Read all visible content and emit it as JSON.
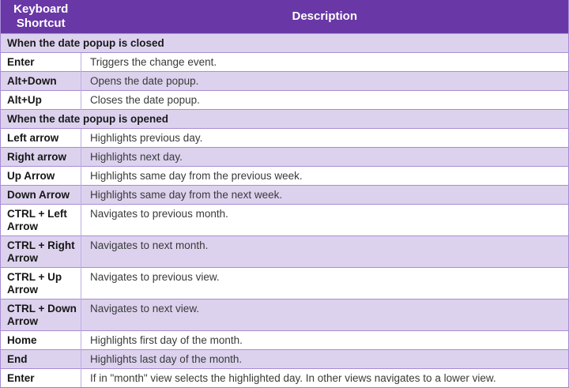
{
  "table": {
    "header": {
      "col1": "Keyboard Shortcut",
      "col2": "Description"
    },
    "rows": [
      {
        "type": "section",
        "label": "When the date popup is closed"
      },
      {
        "type": "item",
        "shortcut": "Enter",
        "description": "Triggers the change event."
      },
      {
        "type": "item",
        "shortcut": "Alt+Down",
        "description": "Opens the date popup."
      },
      {
        "type": "item",
        "shortcut": "Alt+Up",
        "description": "Closes the date popup."
      },
      {
        "type": "section",
        "label": "When the date popup is opened"
      },
      {
        "type": "item",
        "shortcut": "Left arrow",
        "description": "Highlights previous day."
      },
      {
        "type": "item",
        "shortcut": "Right arrow",
        "description": "Highlights next day."
      },
      {
        "type": "item",
        "shortcut": "Up Arrow",
        "description": "Highlights same day from the previous week."
      },
      {
        "type": "item",
        "shortcut": "Down Arrow",
        "description": "Highlights same day from the next week."
      },
      {
        "type": "item",
        "shortcut": "CTRL + Left Arrow",
        "description": "Navigates to previous month."
      },
      {
        "type": "item",
        "shortcut": "CTRL + Right Arrow",
        "description": "Navigates to next month."
      },
      {
        "type": "item",
        "shortcut": "CTRL + Up Arrow",
        "description": "Navigates to previous view."
      },
      {
        "type": "item",
        "shortcut": "CTRL + Down Arrow",
        "description": "Navigates to next view."
      },
      {
        "type": "item",
        "shortcut": "Home",
        "description": "Highlights first day of the month."
      },
      {
        "type": "item",
        "shortcut": "End",
        "description": "Highlights last day of the month."
      },
      {
        "type": "item",
        "shortcut": "Enter",
        "description": "If in \"month\" view selects the highlighted day. In other views navigates to a lower view."
      }
    ]
  },
  "colors": {
    "header_bg": "#6937a6",
    "header_text": "#ffffff",
    "band_purple": "#dcd2ee",
    "band_white": "#ffffff",
    "row_border": "#a78cd4",
    "column_divider": "#c0ace2",
    "bottom_border": "#9b7cd1",
    "shortcut_text": "#161616",
    "description_text": "#3a3a3a"
  }
}
